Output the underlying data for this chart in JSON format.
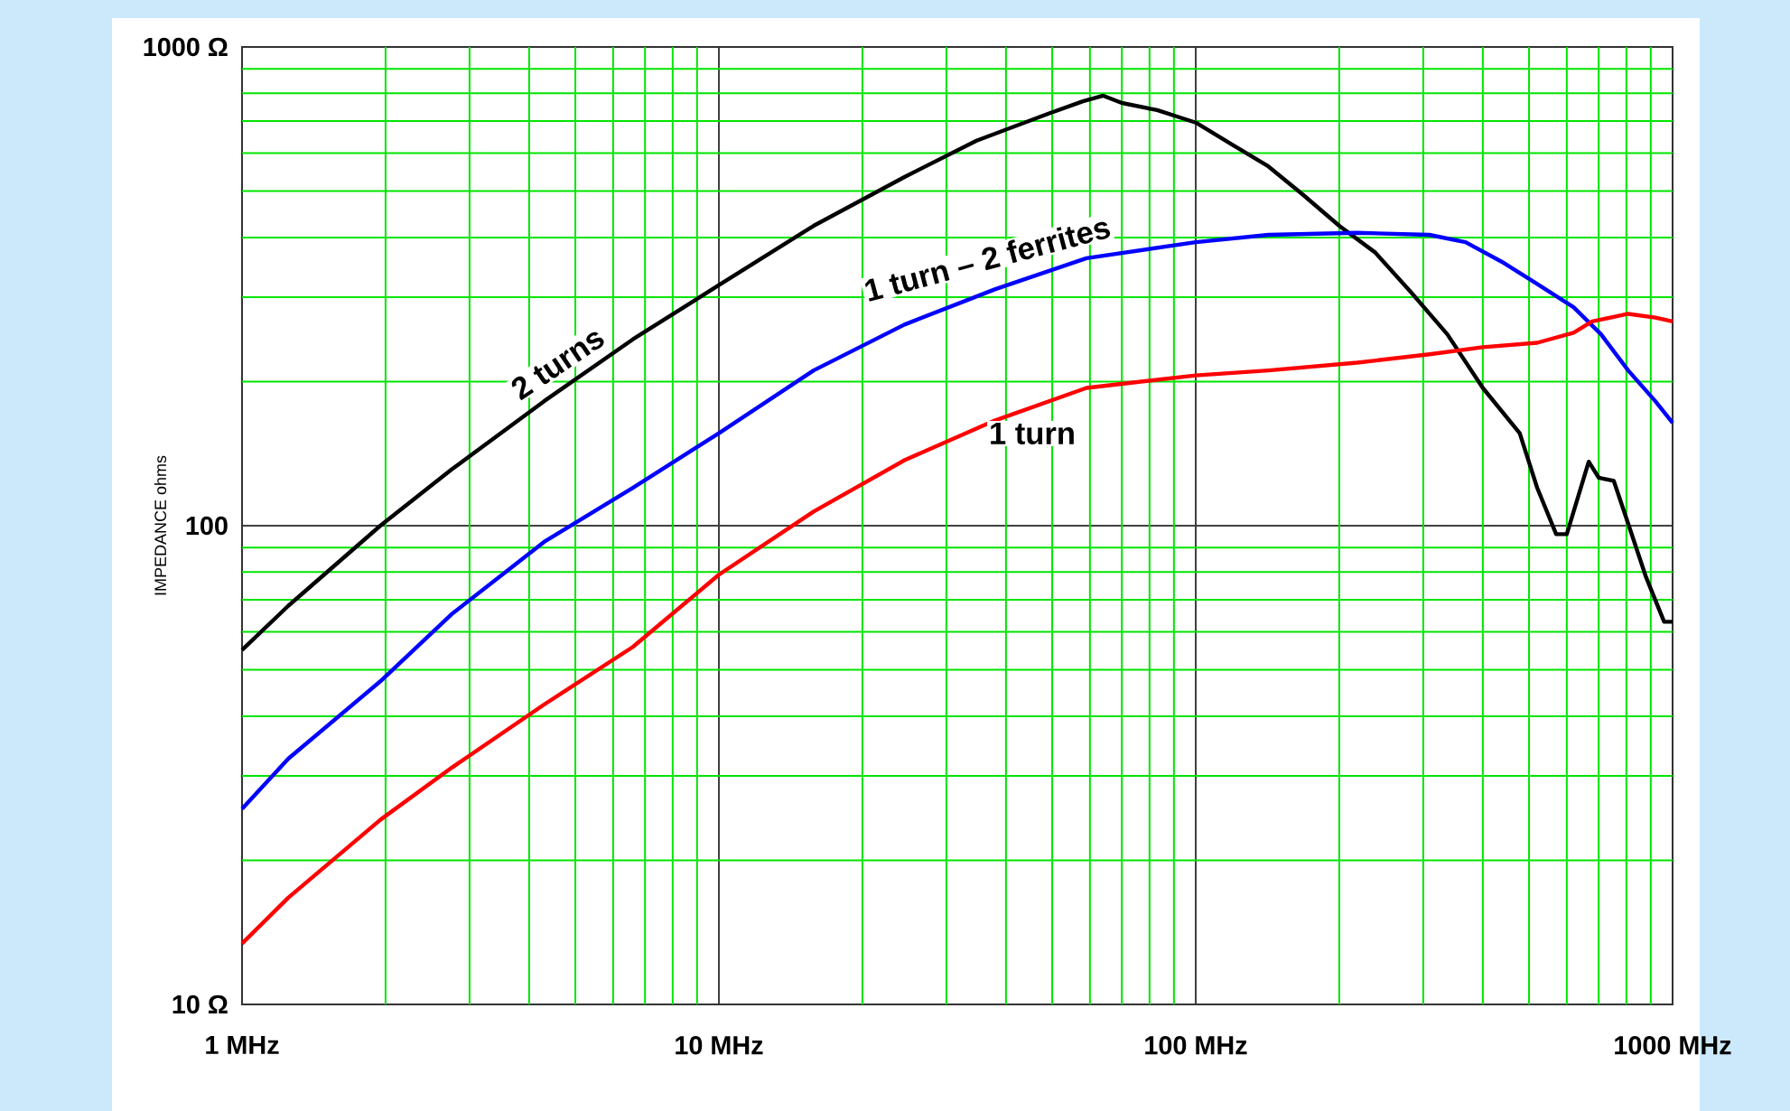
{
  "chart_data": {
    "type": "line",
    "ylabel": "IMPEDANCE  ohms",
    "log": "xy",
    "grid": true,
    "xlim": [
      1,
      1000
    ],
    "ylim": [
      10,
      1000
    ],
    "xticks": [
      {
        "value": 1,
        "label": "1 MHz"
      },
      {
        "value": 2,
        "label": null
      },
      {
        "value": 3,
        "label": null
      },
      {
        "value": 4,
        "label": null
      },
      {
        "value": 5,
        "label": null
      },
      {
        "value": 6,
        "label": null
      },
      {
        "value": 7,
        "label": null
      },
      {
        "value": 8,
        "label": null
      },
      {
        "value": 9,
        "label": null
      },
      {
        "value": 10,
        "label": "10 MHz"
      },
      {
        "value": 20,
        "label": null
      },
      {
        "value": 30,
        "label": null
      },
      {
        "value": 40,
        "label": null
      },
      {
        "value": 50,
        "label": null
      },
      {
        "value": 60,
        "label": null
      },
      {
        "value": 70,
        "label": null
      },
      {
        "value": 80,
        "label": null
      },
      {
        "value": 90,
        "label": null
      },
      {
        "value": 100,
        "label": "100 MHz"
      },
      {
        "value": 200,
        "label": null
      },
      {
        "value": 300,
        "label": null
      },
      {
        "value": 400,
        "label": null
      },
      {
        "value": 500,
        "label": null
      },
      {
        "value": 600,
        "label": null
      },
      {
        "value": 700,
        "label": null
      },
      {
        "value": 800,
        "label": null
      },
      {
        "value": 900,
        "label": null
      },
      {
        "value": 1000,
        "label": "1000 MHz"
      }
    ],
    "yticks": [
      {
        "value": 10,
        "label": "10 Ω"
      },
      {
        "value": 20,
        "label": null
      },
      {
        "value": 30,
        "label": null
      },
      {
        "value": 40,
        "label": null
      },
      {
        "value": 50,
        "label": null
      },
      {
        "value": 60,
        "label": null
      },
      {
        "value": 70,
        "label": null
      },
      {
        "value": 80,
        "label": null
      },
      {
        "value": 90,
        "label": null
      },
      {
        "value": 100,
        "label": "100"
      },
      {
        "value": 200,
        "label": null
      },
      {
        "value": 300,
        "label": null
      },
      {
        "value": 400,
        "label": null
      },
      {
        "value": 500,
        "label": null
      },
      {
        "value": 600,
        "label": null
      },
      {
        "value": 700,
        "label": null
      },
      {
        "value": 800,
        "label": null
      },
      {
        "value": 900,
        "label": null
      },
      {
        "value": 1000,
        "label": "1000 Ω"
      }
    ],
    "series": [
      {
        "name": "2 turns",
        "color": "#000000",
        "x": [
          1,
          1.25,
          1.95,
          2.75,
          4.3,
          6.6,
          10,
          15.8,
          24.5,
          34.7,
          49,
          58,
          64,
          70,
          83,
          100,
          119,
          142,
          168,
          200,
          238,
          283,
          337,
          400,
          478,
          520,
          570,
          600,
          667,
          700,
          753,
          807,
          880,
          960,
          1000
        ],
        "values": [
          55,
          68,
          100,
          131,
          182,
          245,
          318,
          423,
          535,
          637,
          725,
          770,
          791,
          764,
          738,
          695,
          626,
          563,
          491,
          423,
          372,
          307,
          251,
          194,
          156,
          120,
          96,
          96,
          136,
          126,
          124,
          101,
          78,
          63,
          63
        ]
      },
      {
        "name": "1 turn – 2 ferrites",
        "color": "#0000ff",
        "x": [
          1,
          1.25,
          1.95,
          2.75,
          4.3,
          6.6,
          10,
          15.8,
          24.5,
          38,
          59,
          100,
          142,
          218,
          309,
          368,
          438,
          520,
          620,
          708,
          807,
          920,
          1000
        ],
        "values": [
          25.6,
          32.6,
          47.3,
          65.3,
          92.5,
          120,
          156,
          211,
          263,
          312,
          362,
          391,
          405,
          409,
          405,
          391,
          356,
          320,
          286,
          251,
          211,
          182,
          164
        ]
      },
      {
        "name": "1 turn",
        "color": "#ff0000",
        "x": [
          1,
          1.25,
          1.95,
          2.75,
          4.3,
          6.6,
          10,
          15.8,
          24.5,
          38,
          59,
          100,
          142,
          218,
          309,
          400,
          520,
          620,
          678,
          807,
          920,
          1000
        ],
        "values": [
          13.4,
          16.7,
          24.3,
          31.2,
          42.3,
          55.8,
          79,
          107,
          137,
          166,
          194,
          206,
          211,
          219,
          228,
          236,
          241,
          253,
          267,
          277,
          272,
          267
        ]
      }
    ]
  }
}
